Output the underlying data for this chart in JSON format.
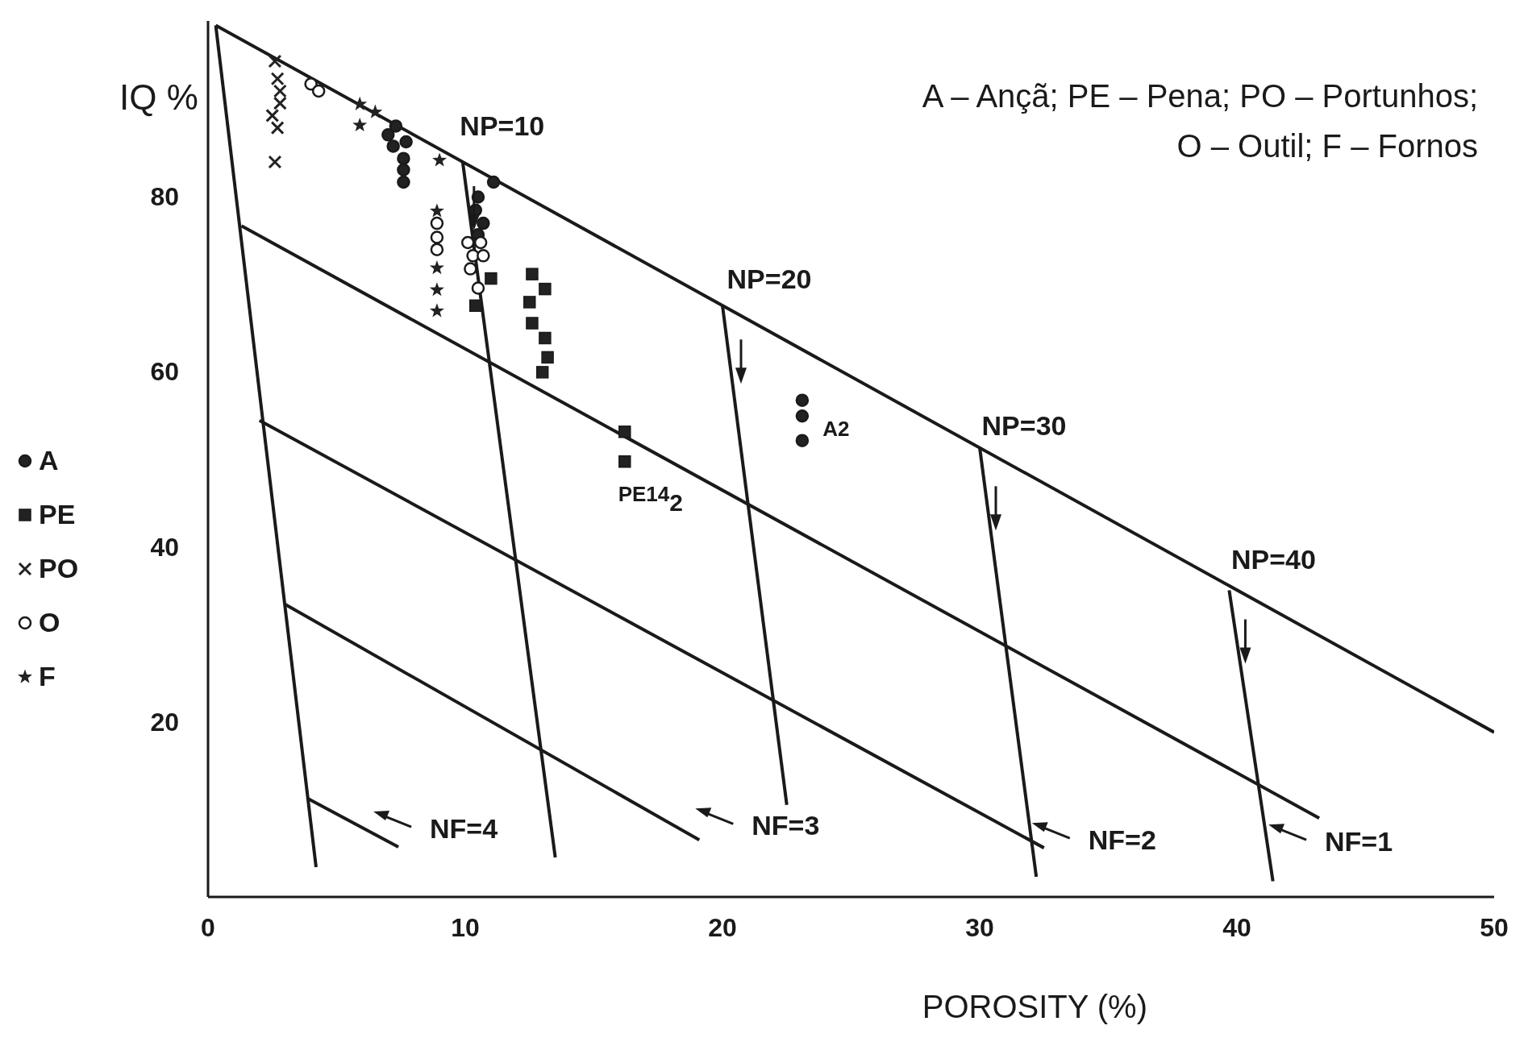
{
  "chart_data": {
    "type": "scatter",
    "ylabel": "IQ %",
    "xlabel": "POROSITY (%)",
    "xlim": [
      0,
      50
    ],
    "ylim": [
      0,
      100
    ],
    "xticks": [
      0,
      10,
      20,
      30,
      40,
      50
    ],
    "yticks": [
      20,
      40,
      60,
      80
    ],
    "legend": "left",
    "annotations": [
      "A – Ançã; PE – Pena; PO – Portunhos; O – Outil; F – Fornos",
      "NP=10",
      "NP=20",
      "NP=30",
      "NP=40",
      "NF=4",
      "NF=3",
      "NF=2",
      "NF=1",
      "PE14$_{2}$",
      "A2"
    ],
    "series": [
      {
        "type": "line",
        "color": "#1a1a1a",
        "x": [
          0.3,
          50
        ],
        "values": [
          99.5,
          18.8
        ]
      },
      {
        "type": "line",
        "color": "#1a1a1a",
        "x": [
          0.3,
          4.2
        ],
        "values": [
          99.5,
          3.4
        ]
      },
      {
        "type": "line",
        "color": "#1a1a1a",
        "x": [
          9.9,
          13.5
        ],
        "values": [
          83.9,
          4.5
        ]
      },
      {
        "type": "line",
        "color": "#1a1a1a",
        "x": [
          20,
          22.5
        ],
        "values": [
          67.5,
          10.5
        ]
      },
      {
        "type": "line",
        "color": "#1a1a1a",
        "x": [
          30,
          32.2
        ],
        "values": [
          51.3,
          2.3
        ]
      },
      {
        "type": "line",
        "color": "#1a1a1a",
        "x": [
          39.7,
          41.4
        ],
        "values": [
          35,
          1.8
        ]
      },
      {
        "type": "line",
        "color": "#1a1a1a",
        "x": [
          1.3,
          43.2
        ],
        "values": [
          76.6,
          9
        ]
      },
      {
        "type": "line",
        "color": "#1a1a1a",
        "x": [
          2,
          32.5
        ],
        "values": [
          54.4,
          5.6
        ]
      },
      {
        "type": "line",
        "color": "#1a1a1a",
        "x": [
          3,
          19.1
        ],
        "values": [
          33.4,
          6.5
        ]
      },
      {
        "type": "line",
        "color": "#1a1a1a",
        "x": [
          3.9,
          7.4
        ],
        "values": [
          11.2,
          5.7
        ]
      },
      {
        "name": "A",
        "marker": "circle",
        "color": "#222222",
        "x": [
          7.3,
          7,
          7.2,
          7.7,
          7.6,
          7.6,
          7.6,
          11.1,
          10.5,
          10.4,
          10.7,
          10.5,
          23.1,
          23.1,
          23.1
        ],
        "values": [
          88,
          87,
          85.7,
          86.2,
          84.3,
          83,
          81.6,
          81.6,
          79.9,
          78.4,
          76.9,
          75.6,
          56.7,
          54.9,
          52.1
        ]
      },
      {
        "name": "PE",
        "marker": "square",
        "color": "#222222",
        "x": [
          11,
          10.4,
          12.6,
          13.1,
          12.5,
          12.6,
          13.1,
          13.2,
          13,
          16.2,
          16.2
        ],
        "values": [
          70.6,
          67.5,
          71.1,
          69.4,
          67.9,
          65.5,
          63.8,
          61.6,
          59.9,
          53.1,
          49.7
        ]
      },
      {
        "name": "PO",
        "marker": "cross",
        "color": "#222222",
        "x": [
          2.6,
          2.7,
          2.8,
          2.8,
          2.5,
          2.7,
          2.6
        ],
        "values": [
          95.4,
          93.4,
          92,
          90.6,
          89.2,
          87.8,
          83.9
        ]
      },
      {
        "name": "O",
        "marker": "circle",
        "color": "#ffffff",
        "x": [
          4,
          4.3,
          8.9,
          8.9,
          8.9,
          10.1,
          10.6,
          10.3,
          10.7,
          10.2,
          10.5
        ],
        "values": [
          92.8,
          92,
          76.9,
          75.3,
          73.9,
          74.7,
          74.7,
          73.2,
          73.2,
          71.7,
          69.5
        ]
      },
      {
        "name": "F",
        "marker": "star",
        "color": "#222222",
        "x": [
          5.9,
          6.5,
          5.9,
          9,
          8.9,
          8.9,
          8.9,
          8.9
        ],
        "values": [
          90.5,
          89.6,
          88.1,
          84.1,
          78.3,
          71.8,
          69.3,
          66.9
        ]
      }
    ]
  }
}
